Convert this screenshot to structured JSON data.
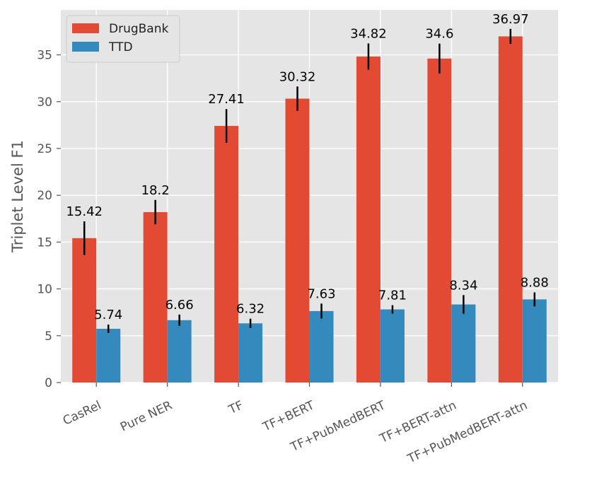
{
  "chart_data": {
    "type": "bar",
    "title": "",
    "xlabel": "",
    "ylabel": "Triplet Level F1",
    "ylim": [
      0,
      39.8
    ],
    "yticks": [
      0,
      5,
      10,
      15,
      20,
      25,
      30,
      35
    ],
    "grid": true,
    "legend_position": "top-left",
    "categories": [
      "CasRel",
      "Pure NER",
      "TF",
      "TF+BERT",
      "TF+PubMedBERT",
      "TF+BERT-attn",
      "TF+PubMedBERT-attn"
    ],
    "series": [
      {
        "name": "DrugBank",
        "color": "#E24A33",
        "values": [
          15.42,
          18.2,
          27.41,
          30.32,
          34.82,
          34.6,
          36.97
        ],
        "labels": [
          "15.42",
          "18.2",
          "27.41",
          "30.32",
          "34.82",
          "34.6",
          "36.97"
        ],
        "errors": [
          1.8,
          1.3,
          1.8,
          1.3,
          1.4,
          1.6,
          0.8
        ]
      },
      {
        "name": "TTD",
        "color": "#348ABD",
        "values": [
          5.74,
          6.66,
          6.32,
          7.63,
          7.81,
          8.34,
          8.88
        ],
        "labels": [
          "5.74",
          "6.66",
          "6.32",
          "7.63",
          "7.81",
          "8.34",
          "8.88"
        ],
        "errors": [
          0.45,
          0.6,
          0.5,
          0.8,
          0.45,
          1.0,
          0.75
        ]
      }
    ]
  }
}
